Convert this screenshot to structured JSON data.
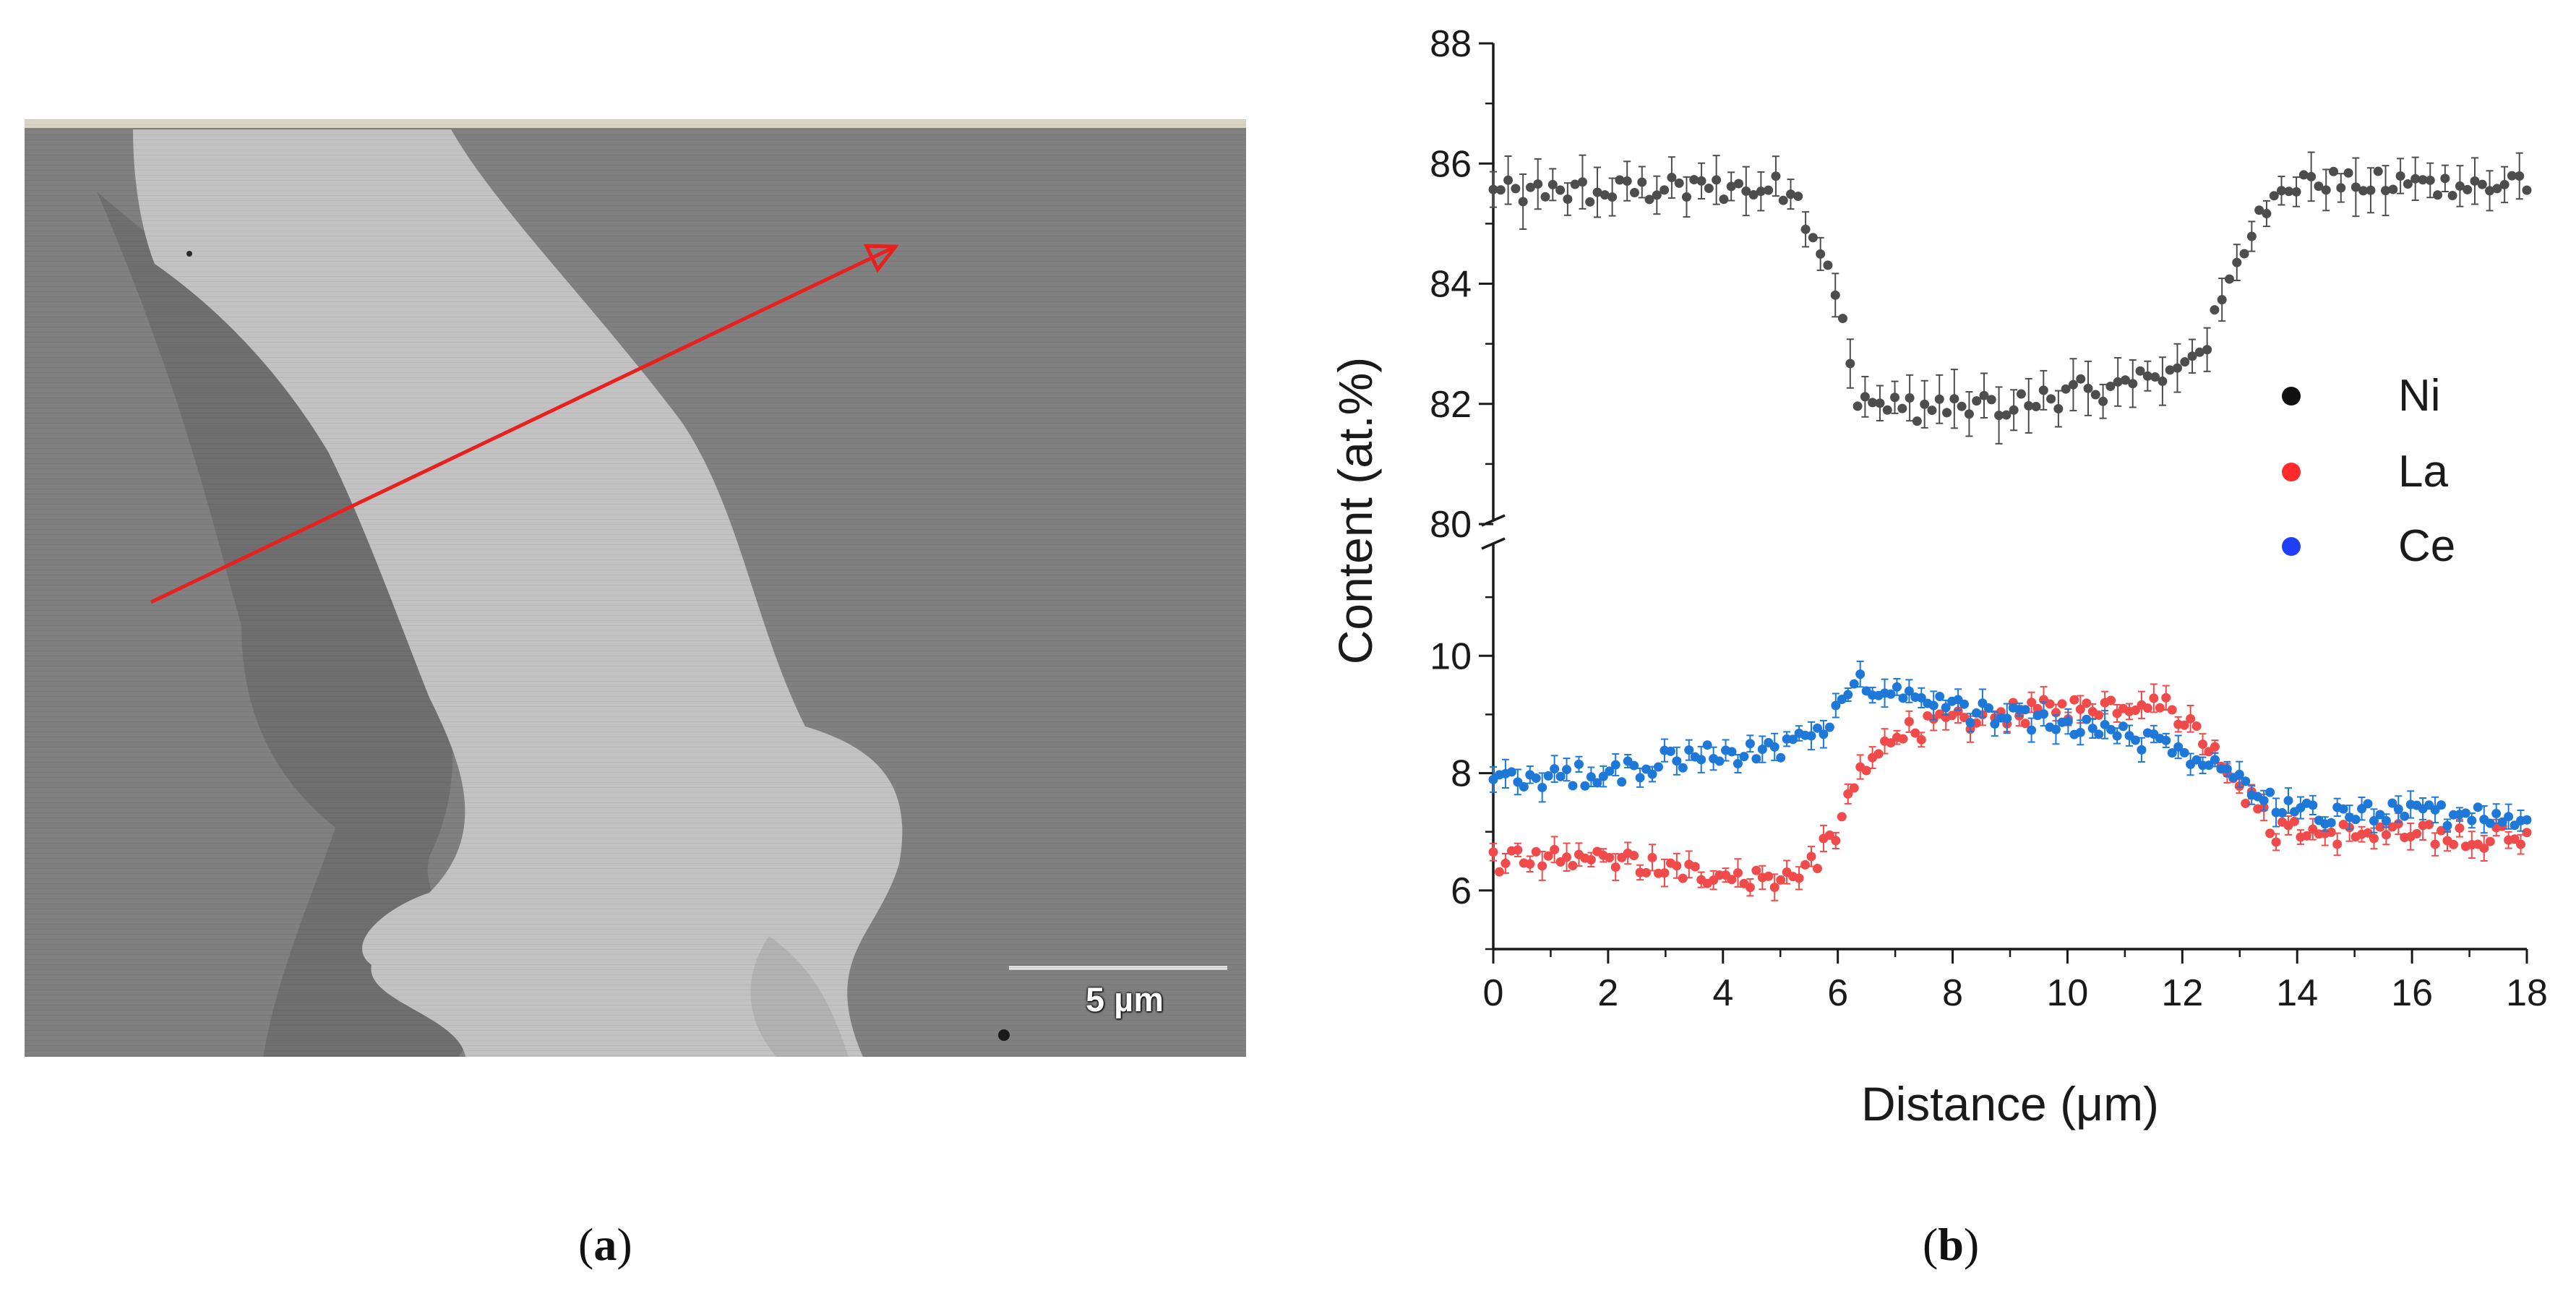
{
  "figure": {
    "panel_a_label": "a",
    "panel_b_label": "b"
  },
  "sem": {
    "scale_bar_label": "5 µm",
    "arrow_color": "#e8201e"
  },
  "chart_data": {
    "type": "scatter",
    "xlabel": "Distance (μm)",
    "ylabel": "Content  (at.%)",
    "xlim": [
      0,
      18
    ],
    "x_ticks": [
      "0",
      "2",
      "4",
      "6",
      "8",
      "10",
      "12",
      "14",
      "16",
      "18"
    ],
    "y_upper": {
      "ylim": [
        80,
        88
      ],
      "ticks": [
        "80",
        "82",
        "84",
        "86",
        "88"
      ]
    },
    "y_lower": {
      "ylim": [
        5,
        12
      ],
      "ticks": [
        "6",
        "8",
        "10"
      ]
    },
    "axis_break": true,
    "legend": [
      {
        "name": "Ni",
        "color": "#111111"
      },
      {
        "name": "La",
        "color": "#ff2a2a"
      },
      {
        "name": "Ce",
        "color": "#1f3fff"
      }
    ],
    "series": [
      {
        "name": "Ni",
        "color": "#4d4d4d",
        "axis": "upper",
        "profile": [
          [
            0,
            85.5
          ],
          [
            5.2,
            85.6
          ],
          [
            5.6,
            84.8
          ],
          [
            6.0,
            83.7
          ],
          [
            6.3,
            82.2
          ],
          [
            6.8,
            81.9
          ],
          [
            9.0,
            82.0
          ],
          [
            11.5,
            82.4
          ],
          [
            12.4,
            83.0
          ],
          [
            13.3,
            85.0
          ],
          [
            13.8,
            85.7
          ],
          [
            18,
            85.6
          ]
        ]
      },
      {
        "name": "La",
        "color": "#f04a4a",
        "axis": "lower",
        "profile": [
          [
            0,
            6.5
          ],
          [
            2.0,
            6.5
          ],
          [
            3.5,
            6.3
          ],
          [
            5.0,
            6.2
          ],
          [
            5.6,
            6.5
          ],
          [
            6.0,
            7.0
          ],
          [
            6.3,
            7.8
          ],
          [
            7.0,
            8.7
          ],
          [
            9.0,
            9.0
          ],
          [
            11.0,
            9.2
          ],
          [
            11.6,
            9.3
          ],
          [
            12.2,
            8.8
          ],
          [
            13.0,
            7.8
          ],
          [
            13.6,
            7.0
          ],
          [
            18,
            6.9
          ]
        ]
      },
      {
        "name": "Ce",
        "color": "#1e78d8",
        "axis": "lower",
        "profile": [
          [
            0,
            7.9
          ],
          [
            2.0,
            8.0
          ],
          [
            3.5,
            8.3
          ],
          [
            5.0,
            8.4
          ],
          [
            5.8,
            8.8
          ],
          [
            6.4,
            9.5
          ],
          [
            7.5,
            9.3
          ],
          [
            8.5,
            9.0
          ],
          [
            10.0,
            8.8
          ],
          [
            11.0,
            8.6
          ],
          [
            12.0,
            8.4
          ],
          [
            13.0,
            7.8
          ],
          [
            14.0,
            7.3
          ],
          [
            18,
            7.3
          ]
        ]
      }
    ]
  }
}
